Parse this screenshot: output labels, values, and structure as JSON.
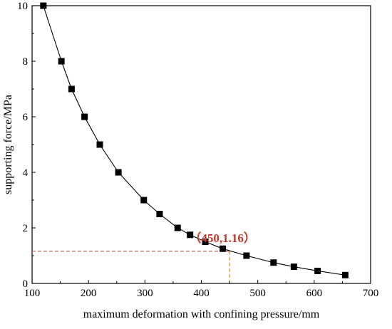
{
  "chart_data": {
    "type": "line",
    "title": "",
    "xlabel": "maximum deformation with confining pressure/mm",
    "ylabel": "supporting force/MPa",
    "xlim": [
      100,
      700
    ],
    "ylim": [
      0,
      10
    ],
    "xticks": [
      100,
      200,
      300,
      400,
      500,
      600,
      700
    ],
    "yticks": [
      0,
      2,
      4,
      6,
      8,
      10
    ],
    "grid": false,
    "legend": "none",
    "line_color": "#000000",
    "marker": "square",
    "series": [
      {
        "x": [
          120,
          152,
          170,
          193,
          220,
          253,
          298,
          326,
          358,
          380,
          407,
          438,
          480,
          528,
          564,
          606,
          655
        ],
        "y": [
          10,
          8,
          7,
          6,
          5,
          4,
          3,
          2.5,
          2,
          1.75,
          1.5,
          1.25,
          1.0,
          0.75,
          0.6,
          0.45,
          0.3
        ]
      }
    ],
    "annotation": {
      "text": "（450,1.16）",
      "x": 450,
      "y": 1.16,
      "color": "#c0392b",
      "guide_h_color": "#c0392b",
      "guide_v_color": "#b8860b"
    }
  }
}
